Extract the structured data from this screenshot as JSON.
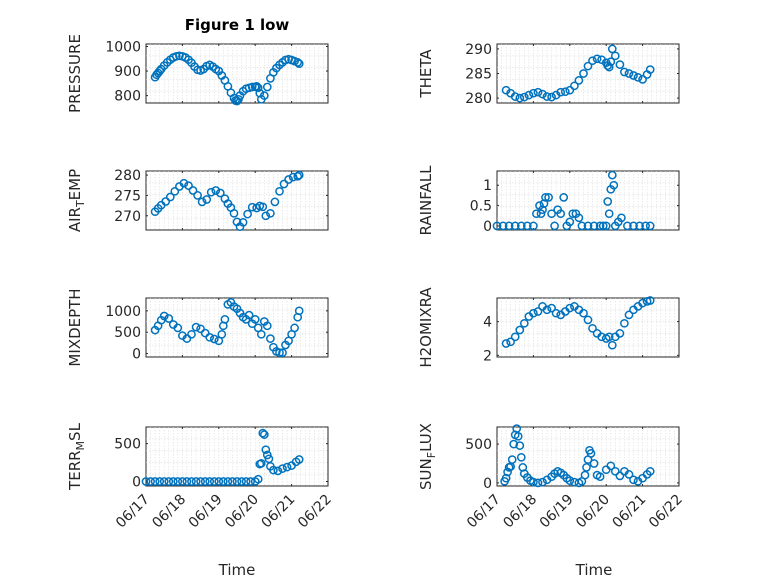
{
  "figure_title": "Figure 1 low",
  "marker_color": "#0072BD",
  "x_labels": [
    "Time",
    "Time"
  ],
  "chart_data": [
    {
      "type": "scatter",
      "name": "pressure",
      "ylabel": "PRESSURE",
      "xlim": [
        "06/17",
        "06/22"
      ],
      "ylim": [
        770,
        1010
      ],
      "yticks": [
        800,
        900,
        1000
      ],
      "xticklabels_shown": false,
      "x": [
        "06/17 06:00",
        "06/17 07:00",
        "06/17 08:00",
        "06/17 09:00",
        "06/17 10:00",
        "06/17 12:00",
        "06/17 14:00",
        "06/17 16:00",
        "06/17 18:00",
        "06/17 20:00",
        "06/17 22:00",
        "06/18 00:00",
        "06/18 02:00",
        "06/18 04:00",
        "06/18 06:00",
        "06/18 08:00",
        "06/18 10:00",
        "06/18 12:00",
        "06/18 14:00",
        "06/18 16:00",
        "06/18 18:00",
        "06/18 20:00",
        "06/18 22:00",
        "06/19 00:00",
        "06/19 02:00",
        "06/19 04:00",
        "06/19 06:00",
        "06/19 08:00",
        "06/19 10:00",
        "06/19 11:00",
        "06/19 12:00",
        "06/19 13:00",
        "06/19 14:00",
        "06/19 16:00",
        "06/19 18:00",
        "06/19 20:00",
        "06/19 22:00",
        "06/20 00:00",
        "06/20 01:00",
        "06/20 02:00",
        "06/20 03:00",
        "06/20 04:00",
        "06/20 06:00",
        "06/20 08:00",
        "06/20 10:00",
        "06/20 12:00",
        "06/20 14:00",
        "06/20 16:00",
        "06/20 18:00",
        "06/20 20:00",
        "06/20 22:00",
        "06/21 00:00",
        "06/21 02:00",
        "06/21 04:00",
        "06/21 05:00"
      ],
      "y": [
        875,
        885,
        892,
        900,
        908,
        922,
        935,
        946,
        955,
        960,
        962,
        960,
        955,
        946,
        934,
        918,
        905,
        902,
        908,
        920,
        925,
        918,
        908,
        900,
        882,
        862,
        838,
        812,
        790,
        780,
        778,
        785,
        800,
        818,
        828,
        832,
        835,
        836,
        838,
        832,
        810,
        785,
        800,
        835,
        870,
        895,
        912,
        925,
        935,
        945,
        948,
        945,
        940,
        935,
        930
      ]
    },
    {
      "type": "scatter",
      "name": "theta",
      "ylabel": "THETA",
      "xlim": [
        "06/17",
        "06/22"
      ],
      "ylim": [
        279,
        291
      ],
      "yticks": [
        280,
        285,
        290
      ],
      "xticklabels_shown": false,
      "x": [
        "06/17 06:00",
        "06/17 09:00",
        "06/17 12:00",
        "06/17 15:00",
        "06/17 18:00",
        "06/17 21:00",
        "06/18 00:00",
        "06/18 03:00",
        "06/18 06:00",
        "06/18 09:00",
        "06/18 12:00",
        "06/18 15:00",
        "06/18 18:00",
        "06/18 21:00",
        "06/19 00:00",
        "06/19 03:00",
        "06/19 06:00",
        "06/19 09:00",
        "06/19 12:00",
        "06/19 15:00",
        "06/19 18:00",
        "06/19 21:00",
        "06/20 00:00",
        "06/20 01:00",
        "06/20 02:00",
        "06/20 03:00",
        "06/20 04:00",
        "06/20 06:00",
        "06/20 09:00",
        "06/20 12:00",
        "06/20 15:00",
        "06/20 18:00",
        "06/20 21:00",
        "06/21 00:00",
        "06/21 03:00",
        "06/21 05:00"
      ],
      "y": [
        281.6,
        281,
        280.3,
        280,
        280.2,
        280.6,
        281,
        281.2,
        280.8,
        280.3,
        280.2,
        280.6,
        281.2,
        281.3,
        281.6,
        282.5,
        283.6,
        285,
        286.5,
        287.6,
        288,
        287.8,
        287.2,
        286.6,
        286.3,
        287.4,
        290,
        288.6,
        286.8,
        285.3,
        285,
        284.6,
        284.2,
        283.8,
        284.8,
        285.8
      ]
    },
    {
      "type": "scatter",
      "name": "air_temp",
      "ylabel": "AIR_TEMP",
      "ylabel_sub": "T",
      "xlim": [
        "06/17",
        "06/22"
      ],
      "ylim": [
        266.5,
        281
      ],
      "yticks": [
        270,
        275,
        280
      ],
      "xticklabels_shown": false,
      "x": [
        "06/17 06:00",
        "06/17 08:00",
        "06/17 10:00",
        "06/17 13:00",
        "06/17 16:00",
        "06/17 19:00",
        "06/17 22:00",
        "06/18 01:00",
        "06/18 04:00",
        "06/18 07:00",
        "06/18 10:00",
        "06/18 13:00",
        "06/18 16:00",
        "06/18 19:00",
        "06/18 22:00",
        "06/19 01:00",
        "06/19 04:00",
        "06/19 06:00",
        "06/19 08:00",
        "06/19 10:00",
        "06/19 12:00",
        "06/19 14:00",
        "06/19 16:00",
        "06/19 19:00",
        "06/19 22:00",
        "06/20 01:00",
        "06/20 03:00",
        "06/20 05:00",
        "06/20 07:00",
        "06/20 10:00",
        "06/20 13:00",
        "06/20 16:00",
        "06/20 19:00",
        "06/20 22:00",
        "06/21 01:00",
        "06/21 04:00",
        "06/21 05:00"
      ],
      "y": [
        271,
        271.8,
        272.6,
        273.5,
        274.6,
        276,
        277.2,
        278,
        277.4,
        276.2,
        275,
        273.4,
        274,
        275.8,
        276.2,
        275.6,
        274.2,
        273,
        272,
        270.6,
        268.5,
        267.3,
        268.4,
        270.4,
        272.1,
        271.9,
        272.4,
        272.2,
        270,
        270.6,
        273.4,
        276,
        277.8,
        278.9,
        279.5,
        279.7,
        280
      ]
    },
    {
      "type": "scatter",
      "name": "rainfall",
      "ylabel": "RAINFALL",
      "xlim": [
        "06/17",
        "06/22"
      ],
      "ylim": [
        -0.1,
        1.35
      ],
      "yticks": [
        0,
        0.5,
        1
      ],
      "xticklabels_shown": false,
      "x": [
        "06/17 00:00",
        "06/17 04:00",
        "06/17 08:00",
        "06/17 12:00",
        "06/17 16:00",
        "06/17 20:00",
        "06/18 00:00",
        "06/18 02:00",
        "06/18 04:00",
        "06/18 05:00",
        "06/18 06:00",
        "06/18 07:00",
        "06/18 08:00",
        "06/18 10:00",
        "06/18 12:00",
        "06/18 14:00",
        "06/18 16:00",
        "06/18 18:00",
        "06/18 20:00",
        "06/18 22:00",
        "06/19 00:00",
        "06/19 02:00",
        "06/19 04:00",
        "06/19 06:00",
        "06/19 08:00",
        "06/19 12:00",
        "06/19 16:00",
        "06/19 20:00",
        "06/19 22:00",
        "06/20 00:00",
        "06/20 01:00",
        "06/20 02:00",
        "06/20 03:00",
        "06/20 04:00",
        "06/20 05:00",
        "06/20 06:00",
        "06/20 08:00",
        "06/20 10:00",
        "06/20 14:00",
        "06/20 18:00",
        "06/20 22:00",
        "06/21 02:00",
        "06/21 05:00"
      ],
      "y": [
        0,
        0,
        0,
        0,
        0,
        0,
        0,
        0.3,
        0.5,
        0.3,
        0.4,
        0.55,
        0.7,
        0.7,
        0.3,
        0,
        0.4,
        0.3,
        0.7,
        0,
        0.1,
        0.3,
        0.3,
        0.2,
        0,
        0,
        0,
        0,
        0,
        0,
        0.6,
        0.3,
        0.9,
        1.25,
        1,
        0,
        0.1,
        0.2,
        0,
        0,
        0,
        0,
        0
      ]
    },
    {
      "type": "scatter",
      "name": "mixdepth",
      "ylabel": "MIXDEPTH",
      "xlim": [
        "06/17",
        "06/22"
      ],
      "ylim": [
        -80,
        1300
      ],
      "yticks": [
        0,
        500,
        1000
      ],
      "xticklabels_shown": false,
      "x": [
        "06/17 06:00",
        "06/17 08:00",
        "06/17 10:00",
        "06/17 12:00",
        "06/17 15:00",
        "06/17 18:00",
        "06/17 21:00",
        "06/18 00:00",
        "06/18 03:00",
        "06/18 06:00",
        "06/18 09:00",
        "06/18 12:00",
        "06/18 15:00",
        "06/18 18:00",
        "06/18 21:00",
        "06/19 00:00",
        "06/19 02:00",
        "06/19 03:00",
        "06/19 04:00",
        "06/19 06:00",
        "06/19 08:00",
        "06/19 10:00",
        "06/19 12:00",
        "06/19 14:00",
        "06/19 16:00",
        "06/19 18:00",
        "06/19 20:00",
        "06/19 22:00",
        "06/20 00:00",
        "06/20 02:00",
        "06/20 04:00",
        "06/20 06:00",
        "06/20 08:00",
        "06/20 10:00",
        "06/20 12:00",
        "06/20 14:00",
        "06/20 16:00",
        "06/20 18:00",
        "06/20 20:00",
        "06/20 22:00",
        "06/21 00:00",
        "06/21 02:00",
        "06/21 04:00",
        "06/21 05:00"
      ],
      "y": [
        550,
        650,
        780,
        880,
        820,
        680,
        600,
        420,
        350,
        450,
        620,
        580,
        480,
        380,
        340,
        300,
        450,
        650,
        800,
        1150,
        1200,
        1100,
        1050,
        950,
        850,
        800,
        900,
        700,
        800,
        600,
        450,
        750,
        650,
        350,
        150,
        50,
        20,
        20,
        200,
        300,
        450,
        600,
        850,
        1000
      ]
    },
    {
      "type": "scatter",
      "name": "h2omixra",
      "ylabel": "H2OMIXRA",
      "xlim": [
        "06/17",
        "06/22"
      ],
      "ylim": [
        1.9,
        5.4
      ],
      "yticks": [
        2,
        4
      ],
      "xticklabels_shown": false,
      "x": [
        "06/17 06:00",
        "06/17 09:00",
        "06/17 12:00",
        "06/17 15:00",
        "06/17 18:00",
        "06/17 21:00",
        "06/18 00:00",
        "06/18 03:00",
        "06/18 06:00",
        "06/18 09:00",
        "06/18 12:00",
        "06/18 15:00",
        "06/18 18:00",
        "06/18 21:00",
        "06/19 00:00",
        "06/19 03:00",
        "06/19 06:00",
        "06/19 09:00",
        "06/19 12:00",
        "06/19 15:00",
        "06/19 18:00",
        "06/19 21:00",
        "06/20 00:00",
        "06/20 02:00",
        "06/20 04:00",
        "06/20 06:00",
        "06/20 09:00",
        "06/20 12:00",
        "06/20 15:00",
        "06/20 18:00",
        "06/20 21:00",
        "06/21 00:00",
        "06/21 03:00",
        "06/21 05:00"
      ],
      "y": [
        2.7,
        2.8,
        3.1,
        3.5,
        3.9,
        4.3,
        4.5,
        4.6,
        4.9,
        4.7,
        4.8,
        4.5,
        4.4,
        4.6,
        4.8,
        4.9,
        4.7,
        4.5,
        4.1,
        3.6,
        3.3,
        3.1,
        3.0,
        3.1,
        2.6,
        3.1,
        3.3,
        3.9,
        4.4,
        4.7,
        4.9,
        5.1,
        5.2,
        5.25
      ]
    },
    {
      "type": "scatter",
      "name": "terr_msl",
      "ylabel": "TERR_MSL",
      "ylabel_sub": "M",
      "xlim": [
        "06/17",
        "06/22"
      ],
      "ylim": [
        -60,
        720
      ],
      "yticks": [
        0,
        500
      ],
      "xticklabels": [
        "06/17",
        "06/18",
        "06/19",
        "06/20",
        "06/21",
        "06/22"
      ],
      "x": [
        "06/17 00:00",
        "06/17 03:00",
        "06/17 06:00",
        "06/17 09:00",
        "06/17 12:00",
        "06/17 15:00",
        "06/17 18:00",
        "06/17 21:00",
        "06/18 00:00",
        "06/18 03:00",
        "06/18 06:00",
        "06/18 09:00",
        "06/18 12:00",
        "06/18 15:00",
        "06/18 18:00",
        "06/18 21:00",
        "06/19 00:00",
        "06/19 03:00",
        "06/19 06:00",
        "06/19 09:00",
        "06/19 12:00",
        "06/19 15:00",
        "06/19 18:00",
        "06/19 21:00",
        "06/20 00:00",
        "06/20 02:00",
        "06/20 03:00",
        "06/20 04:00",
        "06/20 05:00",
        "06/20 06:00",
        "06/20 07:00",
        "06/20 08:00",
        "06/20 09:00",
        "06/20 10:00",
        "06/20 12:00",
        "06/20 15:00",
        "06/20 18:00",
        "06/20 21:00",
        "06/21 00:00",
        "06/21 03:00",
        "06/21 05:00"
      ],
      "y": [
        0,
        0,
        0,
        0,
        0,
        0,
        0,
        0,
        0,
        0,
        0,
        0,
        0,
        0,
        0,
        0,
        0,
        0,
        0,
        0,
        0,
        0,
        0,
        0,
        0,
        30,
        230,
        240,
        640,
        620,
        420,
        350,
        300,
        200,
        150,
        140,
        170,
        190,
        210,
        260,
        290
      ]
    },
    {
      "type": "scatter",
      "name": "sun_flux",
      "ylabel": "SUN_FLUX",
      "ylabel_sub": "F",
      "xlim": [
        "06/17",
        "06/22"
      ],
      "ylim": [
        -40,
        720
      ],
      "yticks": [
        0,
        500
      ],
      "xticklabels": [
        "06/17",
        "06/18",
        "06/19",
        "06/20",
        "06/21",
        "06/22"
      ],
      "x": [
        "06/17 05:00",
        "06/17 06:00",
        "06/17 07:00",
        "06/17 08:00",
        "06/17 09:00",
        "06/17 10:00",
        "06/17 11:00",
        "06/17 12:00",
        "06/17 13:00",
        "06/17 14:00",
        "06/17 15:00",
        "06/17 16:00",
        "06/17 17:00",
        "06/17 18:00",
        "06/17 20:00",
        "06/17 22:00",
        "06/18 00:00",
        "06/18 03:00",
        "06/18 06:00",
        "06/18 09:00",
        "06/18 12:00",
        "06/18 14:00",
        "06/18 16:00",
        "06/18 18:00",
        "06/18 20:00",
        "06/18 22:00",
        "06/19 00:00",
        "06/19 03:00",
        "06/19 06:00",
        "06/19 08:00",
        "06/19 10:00",
        "06/19 11:00",
        "06/19 12:00",
        "06/19 13:00",
        "06/19 14:00",
        "06/19 16:00",
        "06/19 18:00",
        "06/19 20:00",
        "06/20 00:00",
        "06/20 03:00",
        "06/20 06:00",
        "06/20 09:00",
        "06/20 12:00",
        "06/20 15:00",
        "06/20 18:00",
        "06/20 21:00",
        "06/21 00:00",
        "06/21 03:00",
        "06/21 05:00"
      ],
      "y": [
        20,
        60,
        140,
        200,
        210,
        300,
        500,
        620,
        700,
        600,
        480,
        330,
        200,
        120,
        70,
        30,
        10,
        0,
        10,
        40,
        80,
        120,
        150,
        130,
        100,
        60,
        30,
        10,
        0,
        20,
        100,
        200,
        300,
        420,
        380,
        250,
        100,
        80,
        170,
        220,
        150,
        90,
        150,
        110,
        40,
        20,
        60,
        110,
        150
      ]
    }
  ]
}
